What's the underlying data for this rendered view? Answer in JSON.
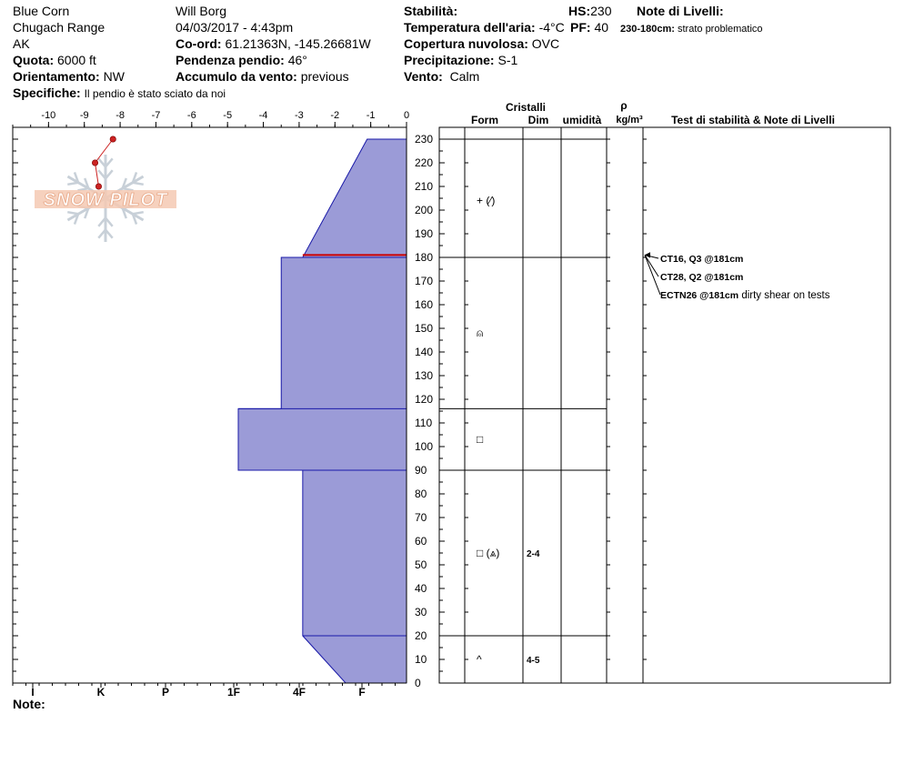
{
  "header": {
    "location_name": "Blue Corn",
    "range": "Chugach Range",
    "state": "AK",
    "quota_label": "Quota:",
    "quota_value": "6000 ft",
    "orientamento_label": "Orientamento:",
    "orientamento_value": "NW",
    "specifiche_label": "Specifiche:",
    "specifiche_value": "Il pendio è stato sciato da noi",
    "observer": "Will Borg",
    "datetime": "04/03/2017 - 4:43pm",
    "coord_label": "Co-ord:",
    "coord_value": "61.21363N, -145.26681W",
    "pendenza_label": "Pendenza pendio:",
    "pendenza_value": "46°",
    "accumulo_label": "Accumulo da vento:",
    "accumulo_value": "previous",
    "stabilita_label": "Stabilità:",
    "temperatura_label": "Temperatura dell'aria:",
    "temperatura_value": "-4°C",
    "copertura_label": "Copertura nuvolosa:",
    "copertura_value": "OVC",
    "precipitazione_label": "Precipitazione:",
    "precipitazione_value": "S-1",
    "vento_label": "Vento:",
    "vento_value": "Calm",
    "hs_label": "HS:",
    "hs_value": "230",
    "pf_label": "PF:",
    "pf_value": "40",
    "note_livelli_label": "Note di Livelli:",
    "note_livelli_depth": "230-180cm:",
    "note_livelli_value": "strato problematico"
  },
  "logo_text": "SNOW PILOT",
  "note_label": "Note:",
  "chart_data": {
    "type": "snow-profile",
    "temperature_axis": {
      "ticks": [
        -10,
        -9,
        -8,
        -7,
        -6,
        -5,
        -4,
        -3,
        -2,
        -1,
        0
      ],
      "range": [
        -11,
        0
      ]
    },
    "hardness_axis": {
      "labels": [
        "I",
        "K",
        "P",
        "1F",
        "4F",
        "F"
      ]
    },
    "height_axis": {
      "range": [
        0,
        230
      ],
      "labels": [
        0,
        10,
        20,
        30,
        40,
        50,
        60,
        70,
        80,
        90,
        100,
        110,
        120,
        130,
        140,
        150,
        160,
        170,
        180,
        190,
        200,
        210,
        220,
        230
      ]
    },
    "temperature_profile": [
      {
        "height": 230,
        "temp": -8.2
      },
      {
        "height": 220,
        "temp": -8.7
      },
      {
        "height": 210,
        "temp": -8.6
      }
    ],
    "hardness_profile": [
      {
        "height": 230,
        "hardness": -1.1
      },
      {
        "height": 180,
        "hardness": -2.9
      },
      {
        "height": 180,
        "hardness": -3.5
      },
      {
        "height": 116,
        "hardness": -3.5
      },
      {
        "height": 116,
        "hardness": -4.7
      },
      {
        "height": 90,
        "hardness": -4.7
      },
      {
        "height": 90,
        "hardness": -2.9
      },
      {
        "height": 20,
        "hardness": -2.9
      },
      {
        "height": 0,
        "hardness": -1.7
      }
    ],
    "weak_layer_height": 181,
    "table_headers": {
      "crystals": "Cristalli",
      "form": "Form",
      "dim": "Dim",
      "umidita": "umidità",
      "rho": "ρ",
      "rho_unit": "kg/m³",
      "tests": "Test di stabilità & Note di Livelli"
    },
    "layer_boundaries": [
      230,
      180,
      116,
      90,
      20
    ],
    "layers": [
      {
        "mid": 204,
        "form": "+ (⁄)",
        "dim": ""
      },
      {
        "mid": 148,
        "form": "⍝",
        "dim": ""
      },
      {
        "mid": 103,
        "form": "□",
        "dim": ""
      },
      {
        "mid": 55,
        "form": "□ (⩓)",
        "dim": "2-4"
      },
      {
        "mid": 10,
        "form": "^",
        "dim": "4-5"
      }
    ],
    "stability_tests": [
      {
        "label": "CT16, Q3 @181cm",
        "note": ""
      },
      {
        "label": "CT28, Q2 @181cm",
        "note": ""
      },
      {
        "label": "ECTN26 @181cm",
        "note": "dirty shear on tests"
      }
    ],
    "colors": {
      "hardness_fill": "#9b9bd7",
      "hardness_stroke": "#1a1aa8",
      "weak_layer": "#cc0000",
      "temperature": "#cc2222"
    }
  }
}
